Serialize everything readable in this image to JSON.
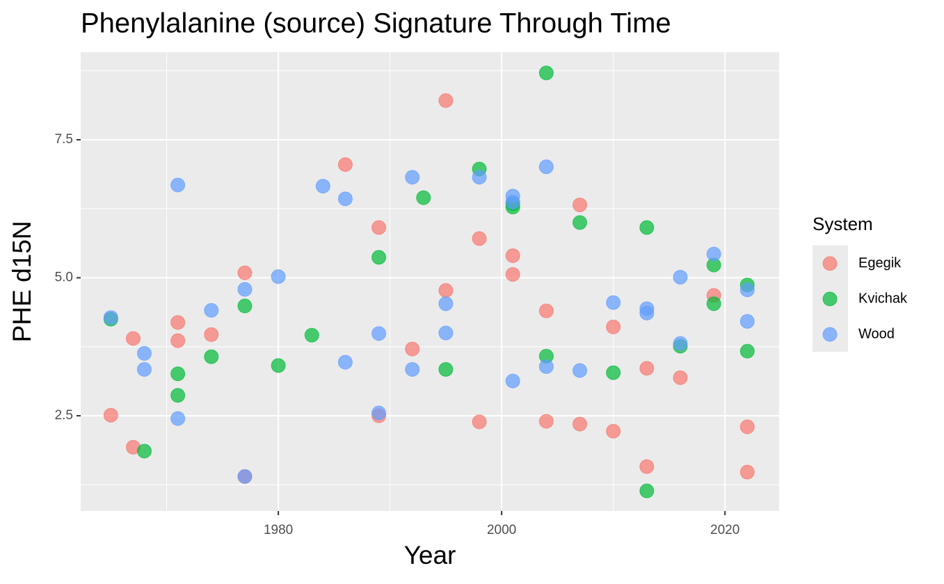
{
  "chart_data": {
    "type": "scatter",
    "title": "Phenylalanine (source) Signature Through Time",
    "x_label": "Year",
    "y_label": "PHE d15N",
    "legend_title": "System",
    "legend_position": "right",
    "grid": true,
    "xlim": [
      1962.3,
      2024.85
    ],
    "ylim": [
      0.775,
      9.087
    ],
    "xticks": [
      1980,
      2000,
      2020
    ],
    "yticks": [
      2.5,
      {
        "value": 5,
        "label": "5.0"
      },
      7.5
    ],
    "series": [
      {
        "name": "Egegik",
        "color": "#F8766D",
        "x": [
          1965,
          1967,
          1967,
          1971,
          1971,
          1974,
          1977,
          1977,
          1986,
          1989,
          1989,
          1992,
          1995,
          1995,
          1998,
          1998,
          2001,
          2001,
          2004,
          2004,
          2007,
          2007,
          2010,
          2010,
          2013,
          2013,
          2016,
          2019,
          2022,
          2022
        ],
        "values": [
          2.51,
          3.9,
          1.93,
          4.19,
          3.86,
          3.97,
          5.09,
          1.4,
          7.05,
          5.91,
          2.5,
          3.71,
          8.21,
          4.77,
          5.71,
          2.39,
          5.4,
          5.06,
          4.4,
          2.4,
          6.32,
          2.35,
          4.11,
          2.22,
          3.36,
          1.58,
          3.19,
          4.68,
          2.3,
          1.48
        ]
      },
      {
        "name": "Kvichak",
        "color": "#00BA38",
        "x": [
          1965,
          1968,
          1971,
          1971,
          1974,
          1977,
          1980,
          1983,
          1989,
          1993,
          1995,
          1998,
          2001,
          2001,
          2004,
          2004,
          2007,
          2010,
          2013,
          2013,
          2016,
          2019,
          2019,
          2022,
          2022
        ],
        "values": [
          4.25,
          1.86,
          3.26,
          2.87,
          3.57,
          4.49,
          3.41,
          3.96,
          5.37,
          6.45,
          3.34,
          6.97,
          6.34,
          6.28,
          8.71,
          3.58,
          6.0,
          3.28,
          5.91,
          1.14,
          3.76,
          5.23,
          4.53,
          4.87,
          3.67
        ]
      },
      {
        "name": "Wood",
        "color": "#619CFF",
        "x": [
          1965,
          1968,
          1968,
          1971,
          1971,
          1974,
          1977,
          1977,
          1980,
          1984,
          1986,
          1986,
          1989,
          1989,
          1992,
          1992,
          1995,
          1995,
          1998,
          2001,
          2001,
          2001,
          2004,
          2004,
          2007,
          2010,
          2013,
          2013,
          2016,
          2016,
          2019,
          2022,
          2022
        ],
        "values": [
          4.28,
          3.63,
          3.34,
          6.68,
          2.45,
          4.41,
          4.79,
          1.4,
          5.02,
          6.66,
          6.43,
          3.47,
          3.99,
          2.55,
          6.82,
          3.34,
          4.53,
          4.0,
          6.82,
          6.48,
          6.37,
          3.13,
          7.01,
          3.39,
          3.32,
          4.55,
          4.44,
          4.36,
          5.01,
          3.81,
          5.43,
          4.78,
          4.21
        ]
      }
    ]
  }
}
